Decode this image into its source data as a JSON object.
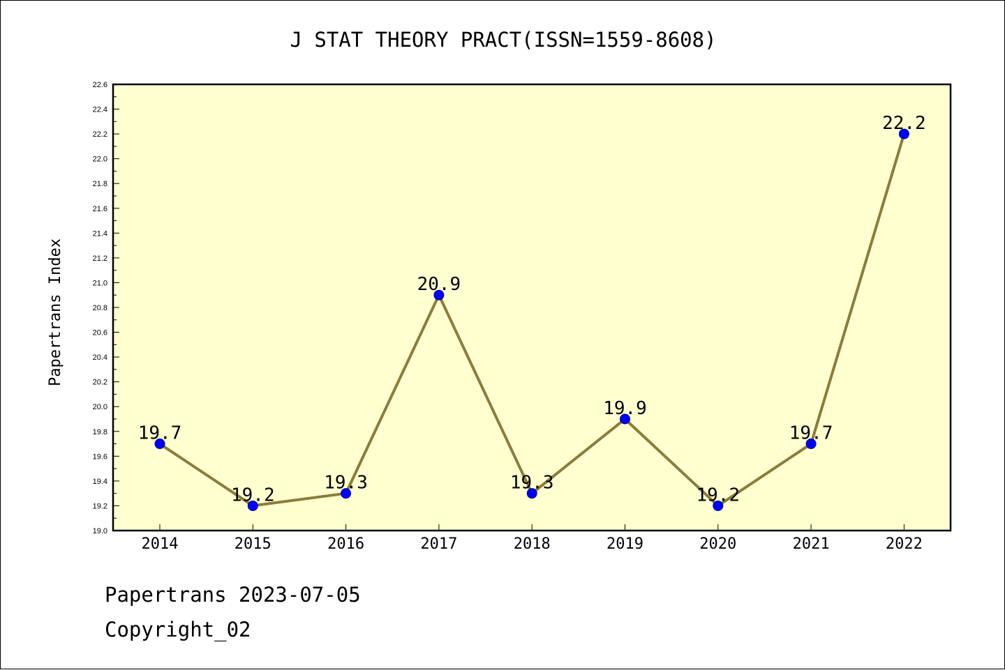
{
  "chart_data": {
    "type": "line",
    "title": "J STAT THEORY PRACT(ISSN=1559-8608)",
    "ylabel": "Papertrans Index",
    "xlabel": "",
    "categories": [
      "2014",
      "2015",
      "2016",
      "2017",
      "2018",
      "2019",
      "2020",
      "2021",
      "2022"
    ],
    "values": [
      19.7,
      19.2,
      19.3,
      20.9,
      19.3,
      19.9,
      19.2,
      19.7,
      22.2
    ],
    "data_labels": [
      "19.7",
      "19.2",
      "19.3",
      "20.9",
      "19.3",
      "19.9",
      "19.2",
      "19.7",
      "22.2"
    ],
    "ylim": [
      19.0,
      22.6
    ],
    "yticks": [
      "19.0",
      "19.2",
      "19.4",
      "19.6",
      "19.8",
      "20.0",
      "20.2",
      "20.4",
      "20.6",
      "20.8",
      "21.0",
      "21.2",
      "21.4",
      "21.6",
      "21.8",
      "22.0",
      "22.2",
      "22.4",
      "22.6"
    ],
    "grid": false,
    "colors": {
      "plot_background": "#ffffd0",
      "line": "#8b7d3a",
      "marker": "#0000ff",
      "marker_edge": "#00008b"
    }
  },
  "footer": {
    "line1": "Papertrans 2023-07-05",
    "line2": "Copyright_02"
  }
}
